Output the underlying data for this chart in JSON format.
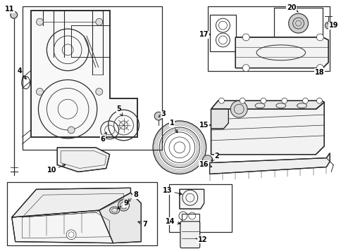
{
  "fig_width": 4.85,
  "fig_height": 3.57,
  "dpi": 100,
  "line_color": "#2a2a2a",
  "bg_color": "#ffffff"
}
